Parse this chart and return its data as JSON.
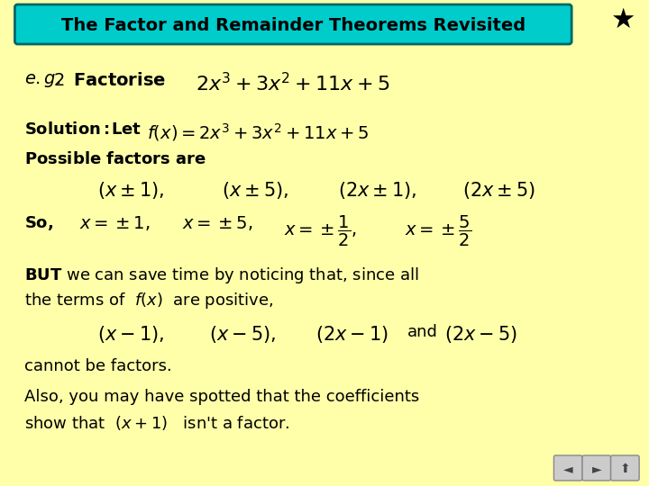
{
  "bg_color": "#ffffaa",
  "title_text": "The Factor and Remainder Theorems Revisited",
  "title_bg": "#00cccc",
  "title_border": "#006666",
  "star_color": "#000000",
  "text_color": "#000000",
  "nav_color": "#cccccc"
}
